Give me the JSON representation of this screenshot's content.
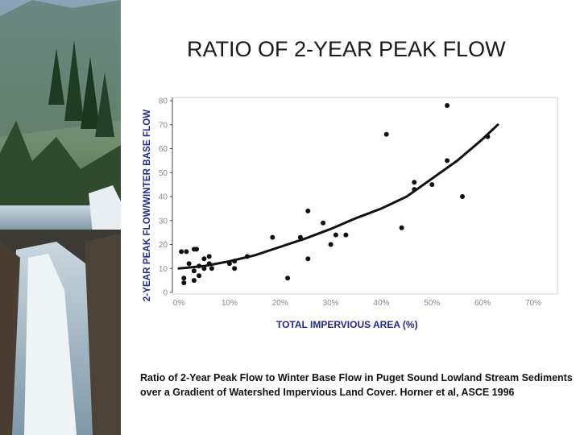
{
  "slide": {
    "title": "RATIO OF 2-YEAR PEAK FLOW",
    "caption": "Ratio of 2-Year Peak Flow to Winter Base Flow in Puget Sound Lowland Stream Sediments over a Gradient of Watershed Impervious Land Cover.  Horner et al, ASCE 1996"
  },
  "decor": {
    "photo": "waterfall-forest-photo"
  },
  "colors": {
    "axis_label": "#1f2a8a",
    "points": "#111111",
    "fit_line": "#111111",
    "tick_text": "#8a8a8a"
  },
  "chart_data": {
    "type": "scatter",
    "title": "",
    "xlabel": "TOTAL IMPERVIOUS AREA (%)",
    "ylabel": "2-YEAR PEAK FLOW/WINTER BASE FLOW",
    "xlim": [
      0,
      70
    ],
    "ylim": [
      0,
      80
    ],
    "x_ticks": [
      {
        "value": 0,
        "label": "0%"
      },
      {
        "value": 10,
        "label": "10%"
      },
      {
        "value": 20,
        "label": "20%"
      },
      {
        "value": 30,
        "label": "30%"
      },
      {
        "value": 40,
        "label": "40%"
      },
      {
        "value": 50,
        "label": "50%"
      },
      {
        "value": 60,
        "label": "60%"
      },
      {
        "value": 70,
        "label": "70%"
      }
    ],
    "y_ticks": [
      0,
      10,
      20,
      30,
      40,
      50,
      60,
      70,
      80
    ],
    "grid": false,
    "points": [
      [
        0.5,
        17
      ],
      [
        1.5,
        17
      ],
      [
        2,
        12
      ],
      [
        1,
        6
      ],
      [
        1,
        4
      ],
      [
        3,
        18
      ],
      [
        3.5,
        18
      ],
      [
        3,
        9
      ],
      [
        3,
        5
      ],
      [
        4,
        11
      ],
      [
        4,
        7
      ],
      [
        5,
        10
      ],
      [
        5,
        14
      ],
      [
        6,
        12
      ],
      [
        6,
        15
      ],
      [
        6.5,
        10
      ],
      [
        10,
        12
      ],
      [
        11,
        13
      ],
      [
        11,
        10
      ],
      [
        13.5,
        15
      ],
      [
        18.5,
        23
      ],
      [
        21.5,
        6
      ],
      [
        24,
        23
      ],
      [
        25.5,
        34
      ],
      [
        25.5,
        14
      ],
      [
        28.5,
        29
      ],
      [
        30,
        20
      ],
      [
        31,
        24
      ],
      [
        33,
        24
      ],
      [
        41,
        66
      ],
      [
        44,
        27
      ],
      [
        46.5,
        46
      ],
      [
        46.5,
        43
      ],
      [
        50,
        45
      ],
      [
        53,
        78
      ],
      [
        53,
        55
      ],
      [
        56,
        40
      ],
      [
        61,
        65
      ]
    ],
    "fit_line": [
      [
        0,
        10
      ],
      [
        5,
        11
      ],
      [
        10,
        13
      ],
      [
        15,
        15.5
      ],
      [
        20,
        19
      ],
      [
        25,
        22.5
      ],
      [
        30,
        26.5
      ],
      [
        35,
        31
      ],
      [
        40,
        35
      ],
      [
        45,
        40
      ],
      [
        50,
        47.5
      ],
      [
        55,
        55
      ],
      [
        60,
        64
      ],
      [
        63,
        70
      ]
    ]
  }
}
